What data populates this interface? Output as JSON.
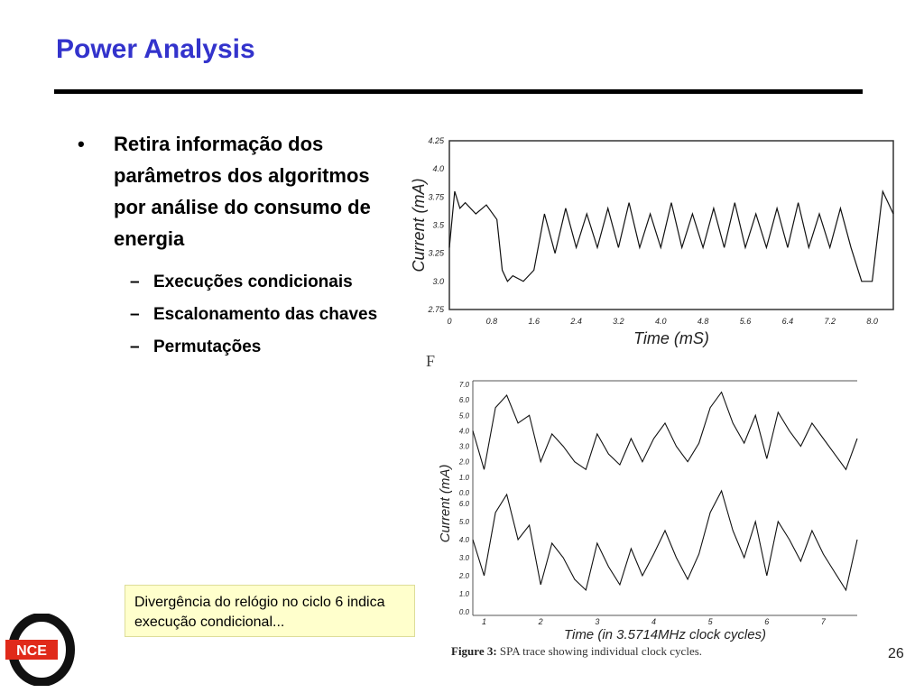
{
  "slide": {
    "title": "Power Analysis",
    "page_number": "26"
  },
  "bullets": {
    "main": {
      "mark": "•",
      "text": "Retira informação dos parâmetros dos algoritmos por análise do consumo de energia"
    },
    "sub": [
      {
        "mark": "–",
        "text": "Execuções condicionais"
      },
      {
        "mark": "–",
        "text": "Escalonamento das chaves"
      },
      {
        "mark": "–",
        "text": "Permutações"
      }
    ]
  },
  "note": {
    "text": "Divergência do relógio no ciclo 6 indica execução condicional..."
  },
  "figure": {
    "fragment": "F",
    "caption_label": "Figure 3:",
    "caption_text": " SPA trace showing individual clock cycles."
  },
  "logo": {
    "text": "NCE"
  },
  "colors": {
    "title": "#3333cc",
    "note_bg": "#ffffcc"
  },
  "chart_data": [
    {
      "type": "line",
      "xlabel": "Time (mS)",
      "ylabel": "Current (mA)",
      "x_ticks": [
        "0",
        "0.8",
        "1.6",
        "2.4",
        "3.2",
        "4.0",
        "4.8",
        "5.6",
        "6.4",
        "7.2",
        "8.0"
      ],
      "y_ticks": [
        "4.25",
        "4.0",
        "3.75",
        "3.5",
        "3.25",
        "3.0",
        "2.75"
      ],
      "xlim": [
        0,
        8.4
      ],
      "ylim": [
        2.75,
        4.25
      ],
      "series": [
        {
          "x": [
            0,
            0.1,
            0.2,
            0.3,
            0.5,
            0.7,
            0.9,
            1.0,
            1.1,
            1.2,
            1.4,
            1.6,
            1.8,
            2.0,
            2.2,
            2.4,
            2.6,
            2.8,
            3.0,
            3.2,
            3.4,
            3.6,
            3.8,
            4.0,
            4.2,
            4.4,
            4.6,
            4.8,
            5.0,
            5.2,
            5.4,
            5.6,
            5.8,
            6.0,
            6.2,
            6.4,
            6.6,
            6.8,
            7.0,
            7.2,
            7.4,
            7.6,
            7.8,
            8.0,
            8.2,
            8.4
          ],
          "y": [
            3.3,
            3.8,
            3.65,
            3.7,
            3.6,
            3.68,
            3.55,
            3.1,
            3.0,
            3.05,
            3.0,
            3.1,
            3.6,
            3.25,
            3.65,
            3.3,
            3.6,
            3.3,
            3.65,
            3.3,
            3.7,
            3.3,
            3.6,
            3.3,
            3.7,
            3.3,
            3.6,
            3.3,
            3.65,
            3.3,
            3.7,
            3.3,
            3.6,
            3.3,
            3.65,
            3.3,
            3.7,
            3.3,
            3.6,
            3.3,
            3.65,
            3.3,
            3.0,
            3.0,
            3.8,
            3.6
          ]
        }
      ]
    },
    {
      "type": "line",
      "xlabel": "Time (in 3.5714MHz clock cycles)",
      "ylabel": "Current (mA)",
      "x_ticks": [
        "1",
        "2",
        "3",
        "4",
        "5",
        "6",
        "7"
      ],
      "y_ticks_upper": [
        "7.0",
        "6.0",
        "5.0",
        "4.0",
        "3.0",
        "2.0",
        "1.0",
        "0.0"
      ],
      "y_ticks_lower": [
        "6.0",
        "5.0",
        "4.0",
        "3.0",
        "2.0",
        "1.0",
        "0.0"
      ],
      "xlim": [
        0.8,
        7.6
      ],
      "series": [
        {
          "x": [
            0.8,
            1.0,
            1.2,
            1.4,
            1.6,
            1.8,
            2.0,
            2.2,
            2.4,
            2.6,
            2.8,
            3.0,
            3.2,
            3.4,
            3.6,
            3.8,
            4.0,
            4.2,
            4.4,
            4.6,
            4.8,
            5.0,
            5.2,
            5.4,
            5.6,
            5.8,
            6.0,
            6.2,
            6.4,
            6.6,
            6.8,
            7.0,
            7.2,
            7.4,
            7.6
          ],
          "y": [
            4.0,
            1.5,
            5.5,
            6.3,
            4.5,
            5.0,
            2.0,
            3.8,
            3.0,
            2.0,
            1.5,
            3.8,
            2.5,
            1.8,
            3.5,
            2.0,
            3.5,
            4.5,
            3.0,
            2.0,
            3.2,
            5.5,
            6.5,
            4.5,
            3.2,
            5.0,
            2.2,
            5.2,
            4.0,
            3.0,
            4.5,
            3.5,
            2.5,
            1.5,
            3.5
          ]
        },
        {
          "x": [
            0.8,
            1.0,
            1.2,
            1.4,
            1.6,
            1.8,
            2.0,
            2.2,
            2.4,
            2.6,
            2.8,
            3.0,
            3.2,
            3.4,
            3.6,
            3.8,
            4.0,
            4.2,
            4.4,
            4.6,
            4.8,
            5.0,
            5.2,
            5.4,
            5.6,
            5.8,
            6.0,
            6.2,
            6.4,
            6.6,
            6.8,
            7.0,
            7.2,
            7.4,
            7.6
          ],
          "y": [
            4.0,
            2.0,
            5.5,
            6.5,
            4.0,
            4.8,
            1.5,
            3.8,
            3.0,
            1.8,
            1.2,
            3.8,
            2.5,
            1.5,
            3.5,
            2.0,
            3.2,
            4.5,
            3.0,
            1.8,
            3.2,
            5.5,
            6.7,
            4.5,
            3.0,
            5.0,
            2.0,
            5.0,
            4.0,
            2.8,
            4.5,
            3.2,
            2.2,
            1.2,
            4.0
          ]
        }
      ]
    }
  ]
}
